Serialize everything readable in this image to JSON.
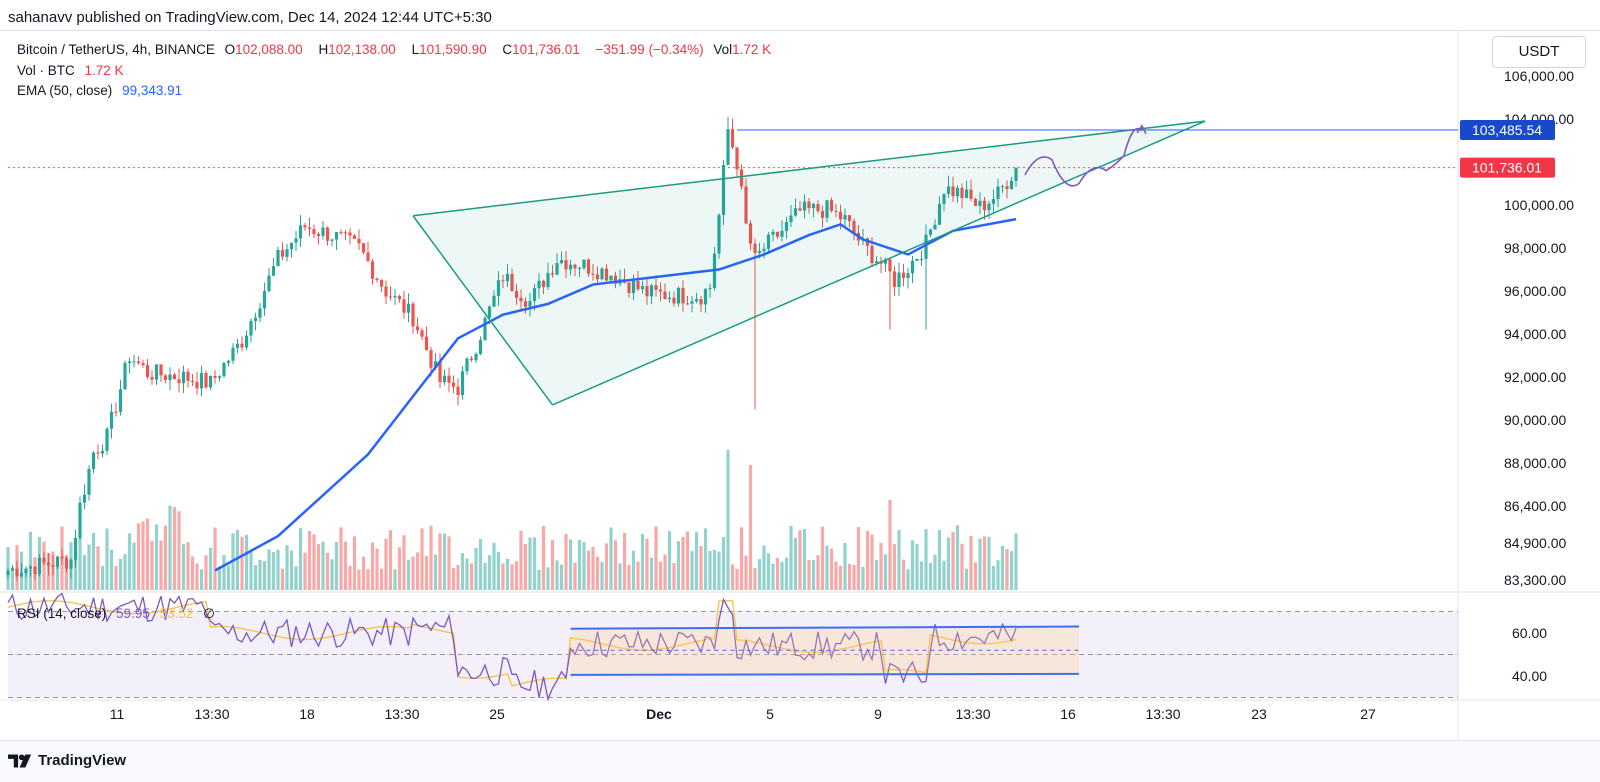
{
  "publisher": "sahanavv published on TradingView.com, Dec 14, 2024 12:44 UTC+5:30",
  "legend": {
    "symbol": "Bitcoin / TetherUS, 4h, BINANCE",
    "o_label": "O",
    "o_value": "102,088.00",
    "h_label": "H",
    "h_value": "102,138.00",
    "l_label": "L",
    "l_value": "101,590.90",
    "c_label": "C",
    "c_value": "101,736.01",
    "change": "−351.99 (−0.34%)",
    "vol_label": "Vol",
    "vol_value": "1.72 K",
    "vol_line_label": "Vol · BTC",
    "vol_line_value": "1.72 K",
    "ema_label": "EMA (50, close)",
    "ema_value": "99,343.91",
    "rsi_label": "RSI (14, close)",
    "rsi_value": "59.95",
    "rsi_ma_value": "53.52",
    "rsi_extra": "∅"
  },
  "currency_button": "USDT",
  "brand": "TradingView",
  "colors": {
    "up": "#26a69a",
    "down": "#ef5350",
    "ema": "#2962ff",
    "pattern": "#1a9c82",
    "rsi": "#7e57c2",
    "rsi_ma": "#f5c242",
    "rsi_channel": "#3d6ff0"
  },
  "chart_data": {
    "type": "candlestick",
    "symbol": "Bitcoin / TetherUS",
    "interval": "4h",
    "exchange": "BINANCE",
    "price_axis": [
      "106,000.00",
      "104,000.00",
      "100,000.00",
      "98,000.00",
      "96,000.00",
      "94,000.00",
      "92,000.00",
      "90,000.00",
      "88,000.00",
      "86,400.00",
      "84,900.00",
      "83,300.00"
    ],
    "price_tags": {
      "target": "103,485.54",
      "last": "101,736.01"
    },
    "time_axis": [
      "11",
      "13:30",
      "18",
      "13:30",
      "25",
      "Dec",
      "5",
      "9",
      "13:30",
      "16",
      "13:30",
      "23",
      "27"
    ],
    "rsi_axis": [
      "60.00",
      "40.00"
    ],
    "candles_anchor_path": [
      [
        0,
        83000
      ],
      [
        14,
        83500
      ],
      [
        16,
        86000
      ],
      [
        19,
        88500
      ],
      [
        22,
        89200
      ],
      [
        27,
        93000
      ],
      [
        31,
        92200
      ],
      [
        39,
        92000
      ],
      [
        45,
        91700
      ],
      [
        52,
        93700
      ],
      [
        60,
        97500
      ],
      [
        66,
        99000
      ],
      [
        72,
        98600
      ],
      [
        78,
        98000
      ],
      [
        84,
        96000
      ],
      [
        90,
        94800
      ],
      [
        96,
        91800
      ],
      [
        100,
        91500
      ],
      [
        104,
        93500
      ],
      [
        110,
        96700
      ],
      [
        116,
        95500
      ],
      [
        122,
        97500
      ],
      [
        128,
        97200
      ],
      [
        134,
        96800
      ],
      [
        142,
        95900
      ],
      [
        148,
        95800
      ],
      [
        154,
        95800
      ],
      [
        156,
        96200
      ],
      [
        158,
        99500
      ],
      [
        160,
        103500
      ],
      [
        162,
        102000
      ],
      [
        164,
        99000
      ],
      [
        166,
        97400
      ],
      [
        168,
        98000
      ],
      [
        172,
        98800
      ],
      [
        176,
        99700
      ],
      [
        182,
        99800
      ],
      [
        186,
        99300
      ],
      [
        190,
        98100
      ],
      [
        194,
        97300
      ],
      [
        197,
        96500
      ],
      [
        200,
        97100
      ],
      [
        204,
        98200
      ],
      [
        208,
        100800
      ],
      [
        212,
        100500
      ],
      [
        216,
        99900
      ],
      [
        220,
        100500
      ],
      [
        224,
        101736
      ]
    ],
    "ema50_path": [
      [
        46,
        83000
      ],
      [
        60,
        84600
      ],
      [
        80,
        88400
      ],
      [
        100,
        93800
      ],
      [
        110,
        94900
      ],
      [
        120,
        95400
      ],
      [
        130,
        96300
      ],
      [
        150,
        96800
      ],
      [
        158,
        97000
      ],
      [
        168,
        97700
      ],
      [
        178,
        98600
      ],
      [
        185,
        99100
      ],
      [
        190,
        98400
      ],
      [
        200,
        97700
      ],
      [
        210,
        98800
      ],
      [
        224,
        99343
      ]
    ],
    "rising_wedge": {
      "upper_from": [
        90,
        99500
      ],
      "upper_to": [
        266,
        103900
      ],
      "lower_from": [
        121,
        90700
      ],
      "lower_to": [
        266,
        103900
      ],
      "left_leg": [
        [
          90,
          99500
        ],
        [
          121,
          90700
        ]
      ]
    },
    "target_level": 103485.54,
    "projection_path": [
      [
        226,
        101400
      ],
      [
        232,
        102100
      ],
      [
        238,
        101000
      ],
      [
        244,
        101600
      ],
      [
        248,
        102300
      ],
      [
        252,
        103450
      ]
    ],
    "rsi_channel": {
      "upper": [
        [
          125,
          62
        ],
        [
          238,
          63
        ]
      ],
      "lower": [
        [
          125,
          40.5
        ],
        [
          238,
          41
        ]
      ],
      "mid": [
        [
          125,
          52
        ],
        [
          238,
          52
        ]
      ]
    },
    "rsi_levels": {
      "upper": 70,
      "middle": 50,
      "lower": 30
    }
  }
}
